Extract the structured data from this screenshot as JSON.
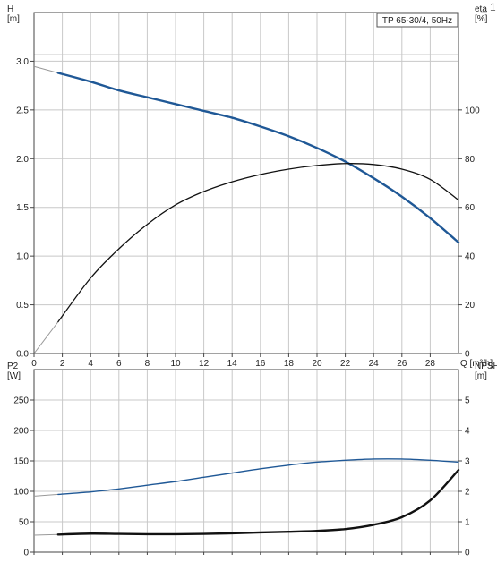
{
  "chart_data": [
    {
      "type": "line",
      "legend_box": "TP 65-30/4, 50Hz",
      "ylabel_left": "H\n[m]",
      "ylabel_right": "eta\n[%]",
      "xlabel": "Q [m³/h]",
      "xlim": [
        0,
        30
      ],
      "ylim_left": [
        0,
        3.5
      ],
      "ylim_right": [
        0,
        140
      ],
      "xticks": [
        "0",
        "2",
        "4",
        "6",
        "8",
        "10",
        "12",
        "14",
        "16",
        "18",
        "20",
        "22",
        "24",
        "26",
        "28"
      ],
      "xtick_values": [
        0,
        2,
        4,
        6,
        8,
        10,
        12,
        14,
        16,
        18,
        20,
        22,
        24,
        26,
        28
      ],
      "yticks_left": [
        "0.0",
        "0.5",
        "1.0",
        "1.5",
        "2.0",
        "2.5",
        "3.0"
      ],
      "yticks_left_values": [
        0,
        0.5,
        1,
        1.5,
        2,
        2.5,
        3
      ],
      "yticks_right": [
        "0",
        "20",
        "40",
        "60",
        "80",
        "100"
      ],
      "yticks_right_values": [
        0,
        20,
        40,
        60,
        80,
        100
      ],
      "grid": true,
      "series": [
        {
          "axis": "left",
          "color": "#1f5896",
          "dashed_to_zero": true,
          "x": [
            1.7,
            4,
            6,
            8,
            10,
            12,
            14,
            16,
            18,
            20,
            22,
            24,
            26,
            28,
            30
          ],
          "y": [
            2.88,
            2.79,
            2.7,
            2.63,
            2.56,
            2.49,
            2.42,
            2.33,
            2.23,
            2.11,
            1.97,
            1.8,
            1.61,
            1.39,
            1.14
          ]
        },
        {
          "axis": "right",
          "color": "#111111",
          "dashed_to_zero": true,
          "x": [
            1.7,
            4,
            6,
            8,
            10,
            12,
            14,
            16,
            18,
            20,
            22,
            24,
            26,
            28,
            30
          ],
          "y": [
            13,
            31,
            43,
            53,
            61,
            66.5,
            70.5,
            73.5,
            75.7,
            77.2,
            78,
            77.6,
            75.7,
            71.5,
            63
          ]
        }
      ]
    },
    {
      "type": "line",
      "ylabel_left": "P2\n[W]",
      "ylabel_right": "NPSH\n[m]",
      "xlim": [
        0,
        30
      ],
      "ylim_left": [
        0,
        300
      ],
      "ylim_right": [
        0,
        6
      ],
      "yticks_left": [
        "0",
        "50",
        "100",
        "150",
        "200",
        "250"
      ],
      "yticks_left_values": [
        0,
        50,
        100,
        150,
        200,
        250
      ],
      "yticks_right": [
        "0",
        "1",
        "2",
        "3",
        "4",
        "5"
      ],
      "yticks_right_values": [
        0,
        1,
        2,
        3,
        4,
        5
      ],
      "grid": true,
      "series": [
        {
          "axis": "left",
          "color": "#1f5896",
          "dashed_to_zero": true,
          "x": [
            1.7,
            4,
            6,
            8,
            10,
            12,
            14,
            16,
            18,
            20,
            22,
            24,
            26,
            28,
            30
          ],
          "y": [
            95,
            99,
            104,
            110,
            116,
            123,
            130,
            137,
            143,
            148,
            151,
            153,
            153,
            151,
            148
          ]
        },
        {
          "axis": "right",
          "color": "#111111",
          "dashed_to_zero": true,
          "x": [
            1.7,
            4,
            6,
            8,
            10,
            12,
            14,
            16,
            18,
            20,
            22,
            24,
            26,
            28,
            30
          ],
          "y": [
            0.58,
            0.61,
            0.6,
            0.59,
            0.59,
            0.6,
            0.62,
            0.65,
            0.67,
            0.7,
            0.76,
            0.9,
            1.15,
            1.7,
            2.7
          ]
        }
      ]
    }
  ],
  "corner_mark": "_ 1"
}
